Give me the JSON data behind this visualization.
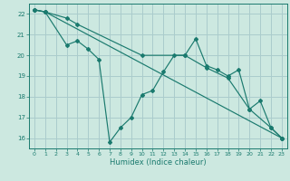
{
  "title": "",
  "xlabel": "Humidex (Indice chaleur)",
  "bg_color": "#cce8e0",
  "grid_color": "#aacccc",
  "line_color": "#1a7a6e",
  "xlim": [
    -0.5,
    23.5
  ],
  "ylim": [
    15.5,
    22.5
  ],
  "yticks": [
    16,
    17,
    18,
    19,
    20,
    21,
    22
  ],
  "xticks": [
    0,
    1,
    2,
    3,
    4,
    5,
    6,
    7,
    8,
    9,
    10,
    11,
    12,
    13,
    14,
    15,
    16,
    17,
    18,
    19,
    20,
    21,
    22,
    23
  ],
  "line1_x": [
    0,
    1,
    3,
    4,
    5,
    6,
    7,
    8,
    9,
    10,
    11,
    12,
    13,
    14,
    15,
    16,
    17,
    18,
    19,
    20,
    21,
    22,
    23
  ],
  "line1_y": [
    22.2,
    22.1,
    20.5,
    20.7,
    20.3,
    19.8,
    15.8,
    16.5,
    17.0,
    18.1,
    18.3,
    19.2,
    20.0,
    20.0,
    20.8,
    19.5,
    19.3,
    19.0,
    19.3,
    17.4,
    17.8,
    16.5,
    16.0
  ],
  "line2_x": [
    0,
    1,
    3,
    4,
    10,
    14,
    16,
    18,
    20,
    22,
    23
  ],
  "line2_y": [
    22.2,
    22.1,
    21.8,
    21.5,
    20.0,
    20.0,
    19.4,
    18.9,
    17.4,
    16.5,
    16.0
  ],
  "line3_x": [
    0,
    1,
    23
  ],
  "line3_y": [
    22.2,
    22.1,
    16.0
  ]
}
